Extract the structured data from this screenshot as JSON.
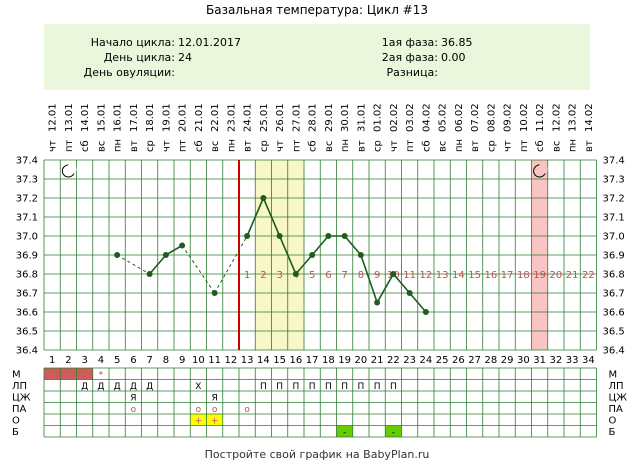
{
  "page_title": "Базальная температура: Цикл #13",
  "info": {
    "cycle_start_label": "Начало цикла:",
    "cycle_start_value": "12.01.2017",
    "cycle_day_label": "День цикла:",
    "cycle_day_value": "24",
    "ovulation_day_label": "День овуляции:",
    "ovulation_day_value": "",
    "phase1_label": "1ая фаза:",
    "phase1_value": "36.85",
    "phase2_label": "2ая фаза:",
    "phase2_value": "0.00",
    "difference_label": "Разница:",
    "difference_value": ""
  },
  "colors": {
    "line": "#1f5c1f",
    "grid": "#2e7d32",
    "coverline": "#cc0000",
    "highlight_yellow": "#f7f7c8",
    "highlight_pink": "#f9c4c4",
    "info_bg": "#eaf7dc",
    "menses": "#cd5c5c",
    "marker_yellow": "#ffff00",
    "marker_green": "#66cc00"
  },
  "chart_data": {
    "type": "line",
    "title": "Базальная температура: Цикл #13",
    "ylim": [
      36.4,
      37.4
    ],
    "y_ticks": [
      "37.4",
      "37.3",
      "37.2",
      "37.1",
      "37.0",
      "36.9",
      "36.8",
      "36.7",
      "36.6",
      "36.5",
      "36.4"
    ],
    "x": [
      1,
      2,
      3,
      4,
      5,
      6,
      7,
      8,
      9,
      10,
      11,
      12,
      13,
      14,
      15,
      16,
      17,
      18,
      19,
      20,
      21,
      22,
      23,
      24,
      25,
      26,
      27,
      28,
      29,
      30,
      31,
      32,
      33,
      34
    ],
    "weekdays": [
      "чт",
      "пт",
      "сб",
      "вс",
      "пн",
      "вт",
      "ср",
      "чт",
      "пт",
      "сб",
      "вс",
      "пн",
      "вт",
      "ср",
      "чт",
      "пт",
      "сб",
      "вс",
      "пн",
      "вт",
      "ср",
      "чт",
      "пт",
      "сб",
      "вс",
      "пн",
      "вт",
      "ср",
      "чт",
      "пт",
      "сб",
      "вс",
      "пн",
      "вт"
    ],
    "dates": [
      "12.01",
      "13.01",
      "14.01",
      "15.01",
      "16.01",
      "17.01",
      "18.01",
      "19.01",
      "20.01",
      "21.01",
      "22.01",
      "23.01",
      "24.01",
      "25.01",
      "26.01",
      "27.01",
      "28.01",
      "29.01",
      "30.01",
      "31.01",
      "01.02",
      "02.02",
      "03.02",
      "04.02",
      "05.02",
      "06.02",
      "07.02",
      "08.02",
      "09.02",
      "10.02",
      "11.02",
      "12.02",
      "13.02",
      "14.02"
    ],
    "series": [
      {
        "points": [
          {
            "day": 5,
            "temp": 36.9
          },
          {
            "day": 7,
            "temp": 36.8
          },
          {
            "day": 8,
            "temp": 36.9
          },
          {
            "day": 9,
            "temp": 36.95
          },
          {
            "day": 11,
            "temp": 36.7
          },
          {
            "day": 13,
            "temp": 37.0
          },
          {
            "day": 14,
            "temp": 37.2
          },
          {
            "day": 15,
            "temp": 37.0
          },
          {
            "day": 16,
            "temp": 36.8
          },
          {
            "day": 17,
            "temp": 36.9
          },
          {
            "day": 18,
            "temp": 37.0
          },
          {
            "day": 19,
            "temp": 37.0
          },
          {
            "day": 20,
            "temp": 36.9
          },
          {
            "day": 21,
            "temp": 36.65
          },
          {
            "day": 22,
            "temp": 36.8
          },
          {
            "day": 23,
            "temp": 36.7
          },
          {
            "day": 24,
            "temp": 36.6
          }
        ]
      }
    ],
    "coverline_day": 12.5,
    "highlight_days": [
      14,
      15,
      16
    ],
    "pink_day": 31,
    "moon_days": [
      2,
      31
    ],
    "cycle_day_labels": [
      {
        "day": 13,
        "label": "1"
      },
      {
        "day": 14,
        "label": "2"
      },
      {
        "day": 15,
        "label": "3"
      },
      {
        "day": 16,
        "label": "4"
      },
      {
        "day": 17,
        "label": "5"
      },
      {
        "day": 18,
        "label": "6"
      },
      {
        "day": 19,
        "label": "7"
      },
      {
        "day": 20,
        "label": "8"
      },
      {
        "day": 21,
        "label": "9"
      },
      {
        "day": 22,
        "label": "10"
      },
      {
        "day": 23,
        "label": "11"
      },
      {
        "day": 24,
        "label": "12"
      },
      {
        "day": 25,
        "label": "13"
      },
      {
        "day": 26,
        "label": "14"
      },
      {
        "day": 27,
        "label": "15"
      },
      {
        "day": 28,
        "label": "16"
      },
      {
        "day": 29,
        "label": "17"
      },
      {
        "day": 30,
        "label": "18"
      },
      {
        "day": 31,
        "label": "19"
      },
      {
        "day": 32,
        "label": "20"
      },
      {
        "day": 33,
        "label": "21"
      },
      {
        "day": 34,
        "label": "22"
      }
    ],
    "rows": [
      {
        "label": "М",
        "cells": [
          {
            "day": 1,
            "fill": "menses"
          },
          {
            "day": 2,
            "fill": "menses"
          },
          {
            "day": 3,
            "fill": "menses"
          },
          {
            "day": 4,
            "text": "*",
            "red": true
          }
        ]
      },
      {
        "label": "ЛП",
        "cells": [
          {
            "day": 3,
            "text": "Д"
          },
          {
            "day": 4,
            "text": "Д"
          },
          {
            "day": 5,
            "text": "Д"
          },
          {
            "day": 6,
            "text": "Д"
          },
          {
            "day": 7,
            "text": "Д"
          },
          {
            "day": 10,
            "text": "Х"
          },
          {
            "day": 14,
            "text": "П"
          },
          {
            "day": 15,
            "text": "П"
          },
          {
            "day": 16,
            "text": "П"
          },
          {
            "day": 17,
            "text": "П"
          },
          {
            "day": 18,
            "text": "П"
          },
          {
            "day": 19,
            "text": "П"
          },
          {
            "day": 20,
            "text": "П"
          },
          {
            "day": 21,
            "text": "П"
          },
          {
            "day": 22,
            "text": "П"
          }
        ]
      },
      {
        "label": "ЦЖ",
        "cells": [
          {
            "day": 6,
            "text": "Я"
          },
          {
            "day": 11,
            "text": "Я"
          }
        ]
      },
      {
        "label": "ПА",
        "cells": [
          {
            "day": 6,
            "text": "o",
            "red": true
          },
          {
            "day": 10,
            "text": "o",
            "red": true
          },
          {
            "day": 11,
            "text": "o",
            "red": true
          },
          {
            "day": 13,
            "text": "o",
            "red": true
          }
        ]
      },
      {
        "label": "О",
        "cells": [
          {
            "day": 10,
            "fill": "marker_yellow",
            "text": "+",
            "red": true
          },
          {
            "day": 11,
            "fill": "marker_yellow",
            "text": "+",
            "red": true
          }
        ]
      },
      {
        "label": "Б",
        "cells": [
          {
            "day": 19,
            "fill": "marker_green",
            "text": "-"
          },
          {
            "day": 22,
            "fill": "marker_green",
            "text": "-"
          }
        ]
      }
    ]
  },
  "footer": "Постройте свой график на BabyPlan.ru"
}
